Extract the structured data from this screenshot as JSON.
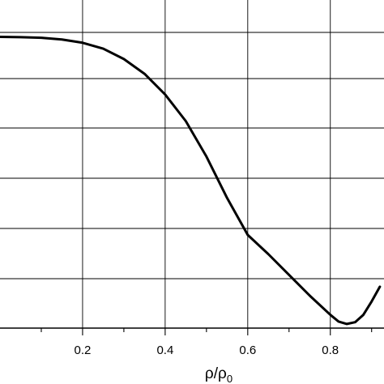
{
  "chart_data": {
    "type": "line",
    "title": "",
    "xlabel": "ρ/ρ",
    "xlabel_subscript": "0",
    "ylabel": "",
    "xlim": [
      0.0,
      0.93
    ],
    "x_ticks": [
      0.2,
      0.4,
      0.6,
      0.8
    ],
    "x_tick_labels": [
      "0.2",
      "0.4",
      "0.6",
      "0.8"
    ],
    "grid": true,
    "line_color": "#000000",
    "series": [
      {
        "x": [
          0.0,
          0.05,
          0.1,
          0.15,
          0.2,
          0.25,
          0.3,
          0.35,
          0.4,
          0.45,
          0.5,
          0.55,
          0.6,
          0.65,
          0.7,
          0.75,
          0.8,
          0.82,
          0.84,
          0.86,
          0.88,
          0.9,
          0.92
        ],
        "y": [
          0.985,
          0.984,
          0.982,
          0.976,
          0.965,
          0.945,
          0.91,
          0.86,
          0.79,
          0.7,
          0.58,
          0.44,
          0.315,
          0.25,
          0.18,
          0.11,
          0.045,
          0.022,
          0.014,
          0.02,
          0.045,
          0.09,
          0.14
        ]
      }
    ]
  }
}
